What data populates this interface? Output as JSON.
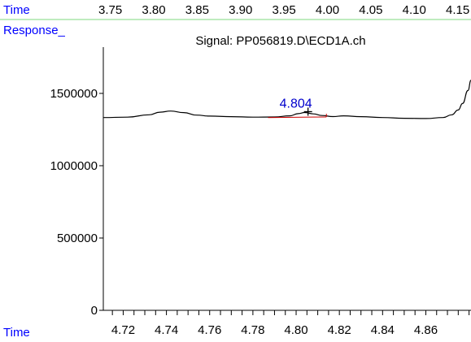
{
  "header": {
    "time_label": "Time",
    "response_label": "Response_",
    "signal_title": "Signal: PP056819.D\\ECD1A.ch",
    "top_time_ticks": [
      "3.75",
      "3.80",
      "3.85",
      "3.90",
      "3.95",
      "4.00",
      "4.05",
      "4.10",
      "4.15"
    ]
  },
  "footer": {
    "time_label": "Time"
  },
  "colors": {
    "label_blue": "#0000ff",
    "divider_green": "#7fd97f",
    "trace": "#000000",
    "peak_baseline": "#cc0000",
    "peak_label": "#0000cc"
  },
  "chart_data": {
    "type": "line",
    "title": "Signal: PP056819.D\\ECD1A.ch",
    "xlabel": "Time",
    "ylabel": "Response_",
    "xlim": [
      4.7108,
      4.8809
    ],
    "ylim": [
      0,
      1820000
    ],
    "x_ticks": [
      4.72,
      4.74,
      4.76,
      4.78,
      4.8,
      4.82,
      4.84,
      4.86
    ],
    "x_tick_labels": [
      "4.72",
      "4.74",
      "4.76",
      "4.78",
      "4.80",
      "4.82",
      "4.84",
      "4.86"
    ],
    "x_minor_step": 0.005,
    "y_ticks": [
      0,
      500000,
      1000000,
      1500000
    ],
    "y_tick_labels": [
      "0",
      "500000",
      "1000000",
      "1500000"
    ],
    "grid": false,
    "series": [
      {
        "x": [
          4.7108,
          4.722,
          4.732,
          4.737,
          4.742,
          4.748,
          4.754,
          4.76,
          4.77,
          4.78,
          4.79,
          4.797,
          4.801,
          4.804,
          4.808,
          4.812,
          4.817,
          4.822,
          4.83,
          4.84,
          4.85,
          4.86,
          4.868,
          4.872,
          4.875,
          4.877,
          4.8795,
          4.8809
        ],
        "y": [
          1333000,
          1336000,
          1352000,
          1370000,
          1378000,
          1367000,
          1350000,
          1343000,
          1339000,
          1336000,
          1337000,
          1345000,
          1360000,
          1368000,
          1358000,
          1347000,
          1340000,
          1345000,
          1339000,
          1333000,
          1328000,
          1326000,
          1333000,
          1352000,
          1385000,
          1430000,
          1520000,
          1590000
        ]
      }
    ],
    "annotations": [
      {
        "text": "4.804",
        "x": 4.804,
        "y": 1368000,
        "peak_start": 4.787,
        "peak_end": 4.814,
        "baseline_start_y": 1333000,
        "baseline_end_y": 1337000
      }
    ]
  }
}
